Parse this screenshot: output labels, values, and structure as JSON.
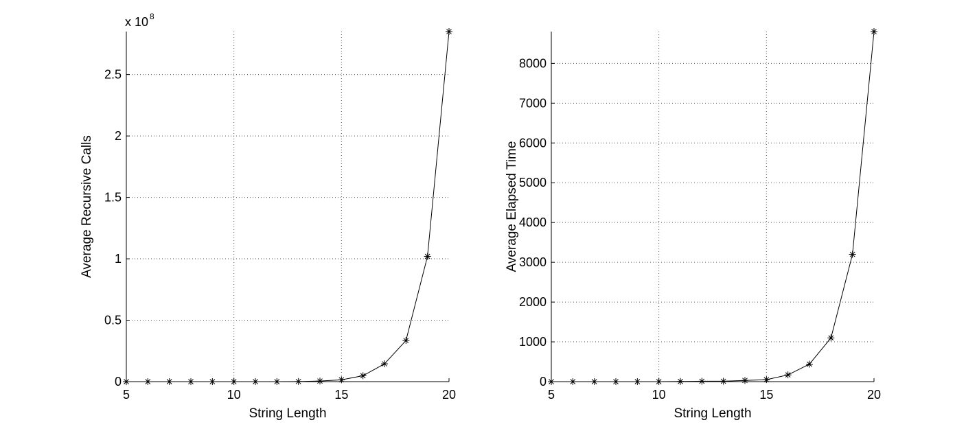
{
  "chart_data": [
    {
      "type": "line",
      "marker": "asterisk",
      "color": "#000000",
      "grid": true,
      "x": [
        5,
        6,
        7,
        8,
        9,
        10,
        11,
        12,
        13,
        14,
        15,
        16,
        17,
        18,
        19,
        20
      ],
      "y": [
        0,
        0,
        0,
        0,
        0,
        0,
        0,
        0,
        100000,
        500000,
        1500000,
        4800000,
        14500000,
        33500000,
        102000000,
        285000000
      ],
      "xlabel": "String Length",
      "ylabel": "Average Recursive Calls",
      "xlim": [
        5,
        20
      ],
      "ylim": [
        0,
        285000000
      ],
      "xticks": [
        5,
        10,
        15,
        20
      ],
      "xtick_labels": [
        "5",
        "10",
        "15",
        "20"
      ],
      "yticks": [
        0,
        50000000,
        100000000,
        150000000,
        200000000,
        250000000
      ],
      "ytick_labels": [
        "0",
        "0.5",
        "1",
        "1.5",
        "2",
        "2.5"
      ],
      "exponent_prefix": "x 10",
      "exponent_power": "8"
    },
    {
      "type": "line",
      "marker": "asterisk",
      "color": "#000000",
      "grid": true,
      "x": [
        5,
        6,
        7,
        8,
        9,
        10,
        11,
        12,
        13,
        14,
        15,
        16,
        17,
        18,
        19,
        20
      ],
      "y": [
        0,
        0,
        0,
        0,
        0,
        0,
        5,
        10,
        10,
        30,
        50,
        170,
        440,
        1100,
        3200,
        8800
      ],
      "xlabel": "String Length",
      "ylabel": "Average Elapsed Time",
      "xlim": [
        5,
        20
      ],
      "ylim": [
        0,
        8800
      ],
      "xticks": [
        5,
        10,
        15,
        20
      ],
      "xtick_labels": [
        "5",
        "10",
        "15",
        "20"
      ],
      "yticks": [
        0,
        1000,
        2000,
        3000,
        4000,
        5000,
        6000,
        7000,
        8000
      ],
      "ytick_labels": [
        "0",
        "1000",
        "2000",
        "3000",
        "4000",
        "5000",
        "6000",
        "7000",
        "8000"
      ]
    }
  ]
}
